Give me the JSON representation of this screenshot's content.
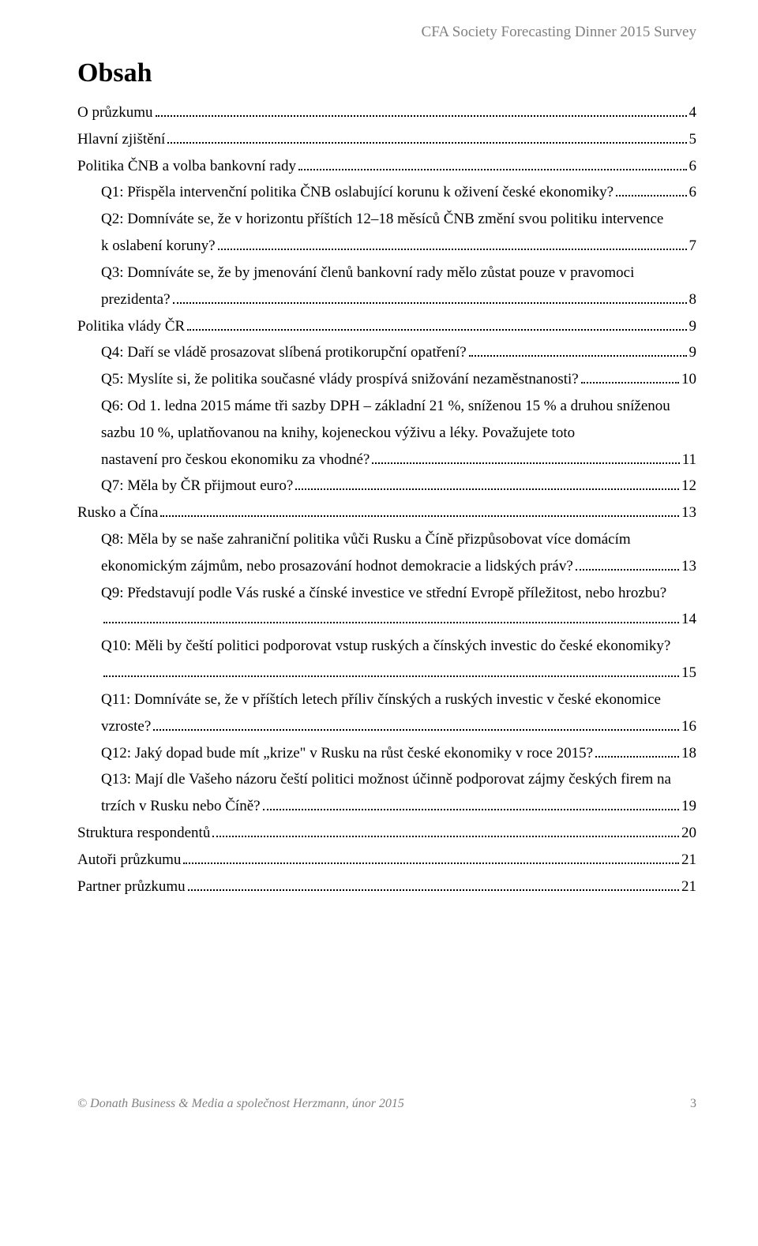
{
  "header": "CFA Society Forecasting Dinner 2015 Survey",
  "title": "Obsah",
  "toc": [
    {
      "level": 0,
      "label": "O průzkumu",
      "page": "4"
    },
    {
      "level": 0,
      "label": "Hlavní zjištění",
      "page": "5"
    },
    {
      "level": 0,
      "label": "Politika ČNB a volba bankovní rady",
      "page": "6"
    },
    {
      "level": 1,
      "label": "Q1: Přispěla intervenční politika ČNB oslabující korunu k oživení české ekonomiky?",
      "page": "6"
    },
    {
      "level": 1,
      "multiline": true,
      "lead": "Q2: Domníváte se, že v horizontu příštích 12–18 měsíců ČNB změní svou politiku intervence",
      "tail": "k oslabení koruny?",
      "page": "7"
    },
    {
      "level": 1,
      "multiline": true,
      "lead": "Q3: Domníváte se, že by jmenování členů bankovní rady mělo zůstat pouze v pravomoci",
      "tail": "prezidenta?",
      "page": "8"
    },
    {
      "level": 0,
      "label": "Politika vlády ČR",
      "page": "9"
    },
    {
      "level": 1,
      "label": "Q4: Daří se vládě prosazovat slíbená protikorupční opatření?",
      "page": "9"
    },
    {
      "level": 1,
      "label": "Q5: Myslíte si, že politika současné vlády prospívá snižování nezaměstnanosti?",
      "page": "10"
    },
    {
      "level": 1,
      "multiline": true,
      "lead": "Q6: Od 1. ledna 2015 máme tři sazby DPH – základní 21 %, sníženou 15 % a druhou sníženou sazbu 10 %, uplatňovanou na knihy, kojeneckou výživu a léky. Považujete toto",
      "tail": "nastavení pro českou ekonomiku za vhodné?",
      "page": "11"
    },
    {
      "level": 1,
      "label": "Q7: Měla by ČR přijmout euro?",
      "page": "12"
    },
    {
      "level": 0,
      "label": "Rusko a Čína",
      "page": "13"
    },
    {
      "level": 1,
      "multiline": true,
      "lead": "Q8: Měla by se naše zahraniční politika vůči Rusku a Číně přizpůsobovat více domácím",
      "tail": "ekonomickým zájmům, nebo prosazování hodnot demokracie a lidských práv?",
      "page": "13"
    },
    {
      "level": 1,
      "multiline": true,
      "lead": "Q9: Představují podle Vás ruské a čínské investice ve střední Evropě příležitost, nebo hrozbu?",
      "tail": "",
      "page": "14"
    },
    {
      "level": 1,
      "multiline": true,
      "lead": "Q10: Měli by čeští politici podporovat vstup ruských a čínských investic do české ekonomiky?",
      "tail": "",
      "page": "15"
    },
    {
      "level": 1,
      "multiline": true,
      "lead": "Q11: Domníváte se, že v příštích letech příliv čínských a ruských investic v české ekonomice",
      "tail": "vzroste?",
      "page": "16"
    },
    {
      "level": 1,
      "label": "Q12: Jaký dopad bude mít „krize\" v Rusku na růst české ekonomiky v roce 2015?",
      "page": "18"
    },
    {
      "level": 1,
      "multiline": true,
      "lead": "Q13: Mají dle Vašeho názoru čeští politici možnost účinně podporovat zájmy českých firem na",
      "tail": "trzích v Rusku nebo Číně?",
      "page": "19"
    },
    {
      "level": 0,
      "label": "Struktura respondentů",
      "page": "20"
    },
    {
      "level": 0,
      "label": "Autoři průzkumu",
      "page": "21"
    },
    {
      "level": 0,
      "label": "Partner průzkumu",
      "page": "21"
    }
  ],
  "footer": {
    "left": "© Donath Business & Media a společnost Herzmann, únor 2015",
    "page": "3"
  },
  "colors": {
    "text": "#000000",
    "headerText": "#808080",
    "footerText": "#808080",
    "background": "#ffffff"
  },
  "fonts": {
    "body_family": "Garamond, Georgia, serif",
    "body_size_pt": 14,
    "title_size_pt": 26
  }
}
